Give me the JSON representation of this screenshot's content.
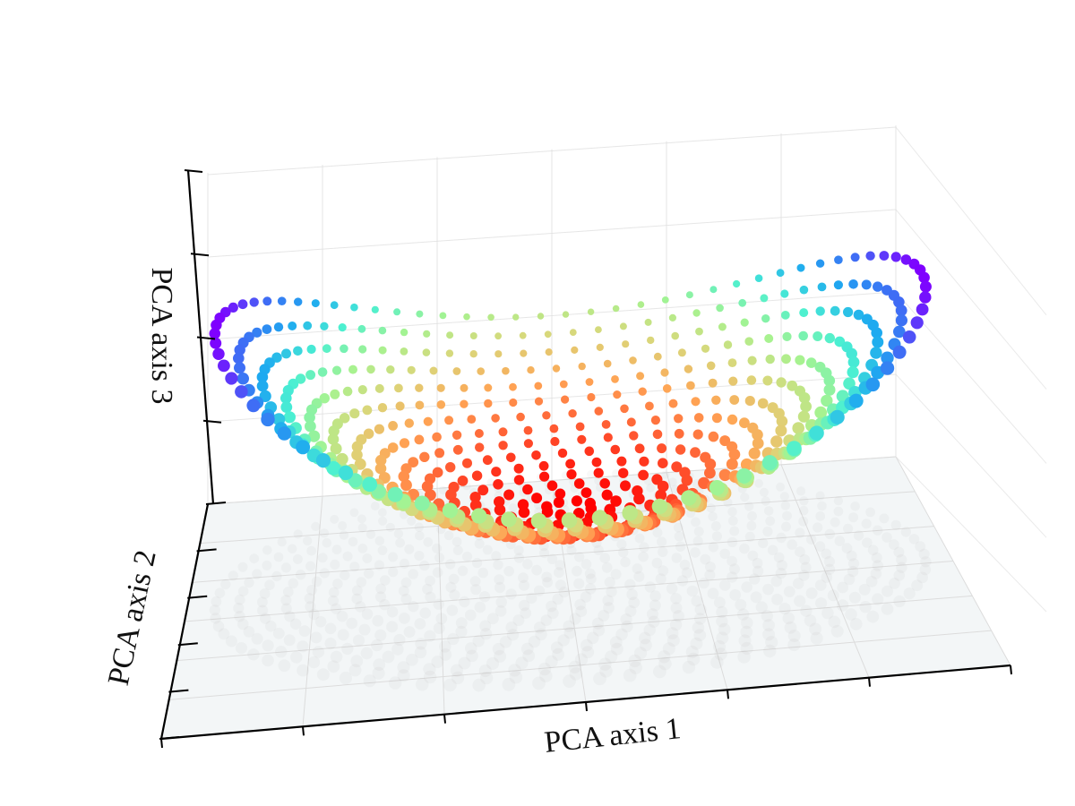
{
  "chart_data": {
    "type": "scatter",
    "projection": "3d",
    "title": "",
    "xlabel": "PCA axis 1",
    "ylabel": "PCA axis 2",
    "zlabel": "PCA axis 3",
    "xlim": [
      -1,
      1
    ],
    "ylim": [
      -1,
      1
    ],
    "zlim": [
      -1,
      1
    ],
    "grid": true,
    "colormap": "rainbow",
    "colormap_stops": [
      "#7f00ff",
      "#4169f5",
      "#1eaaf0",
      "#4bf0d2",
      "#a6f391",
      "#dbd67a",
      "#ffa555",
      "#ff5a32",
      "#ff0000"
    ],
    "shadow_color": "#8c8c8c",
    "pane_color": "#e9eef1",
    "grid_color": "#dcdcdc",
    "axis_color": "#000000",
    "surface": {
      "description_text": "",
      "rings": 15,
      "points_per_ring_max": 80,
      "equation": "z = 0.35*r^2*cos(2*theta) + 0.9*r^2 - 0.5",
      "color_by": "z"
    },
    "shadow": {
      "projected_on": "floor",
      "alpha": 0.06
    }
  }
}
